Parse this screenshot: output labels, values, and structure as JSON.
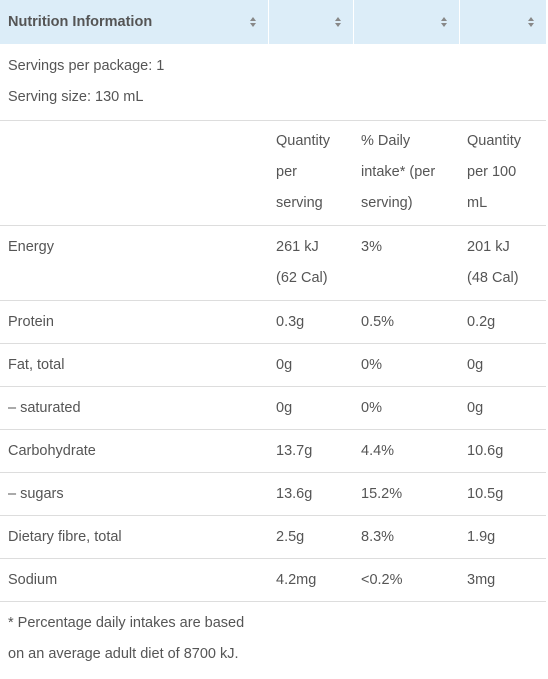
{
  "table": {
    "headers": [
      "Nutrition Information",
      "",
      "",
      ""
    ],
    "servings_per_package": "Servings per package: 1",
    "serving_size": "Serving size: 130 mL",
    "column_headings": {
      "per_serving": [
        "Quantity",
        "per",
        "serving"
      ],
      "daily_intake": [
        "% Daily",
        "intake* (per",
        "serving)"
      ],
      "per_100": [
        "Quantity",
        "per 100",
        "mL"
      ]
    },
    "energy": {
      "label": "Energy",
      "per_serving": [
        "261 kJ",
        "(62 Cal)"
      ],
      "daily_intake": "3%",
      "per_100": [
        "201 kJ",
        "(48 Cal)"
      ]
    },
    "rows": [
      {
        "label": "Protein",
        "per_serving": "0.3g",
        "daily_intake": "0.5%",
        "per_100": "0.2g"
      },
      {
        "label": "Fat, total",
        "per_serving": "0g",
        "daily_intake": "0%",
        "per_100": "0g"
      },
      {
        "label": "– saturated",
        "per_serving": "0g",
        "daily_intake": "0%",
        "per_100": "0g"
      },
      {
        "label": "Carbohydrate",
        "per_serving": "13.7g",
        "daily_intake": "4.4%",
        "per_100": "10.6g"
      },
      {
        "label": "– sugars",
        "per_serving": "13.6g",
        "daily_intake": "15.2%",
        "per_100": "10.5g"
      },
      {
        "label": "Dietary fibre, total",
        "per_serving": "2.5g",
        "daily_intake": "8.3%",
        "per_100": "1.9g"
      },
      {
        "label": "Sodium",
        "per_serving": "4.2mg",
        "daily_intake": "<0.2%",
        "per_100": "3mg"
      }
    ],
    "footnote": [
      "* Percentage daily intakes are based",
      "on an average adult diet of 8700 kJ."
    ]
  },
  "colors": {
    "header_bg": "#dcedf8",
    "text": "#555555",
    "border": "#dddddd"
  },
  "icons": {
    "sort": "sort-icon"
  }
}
